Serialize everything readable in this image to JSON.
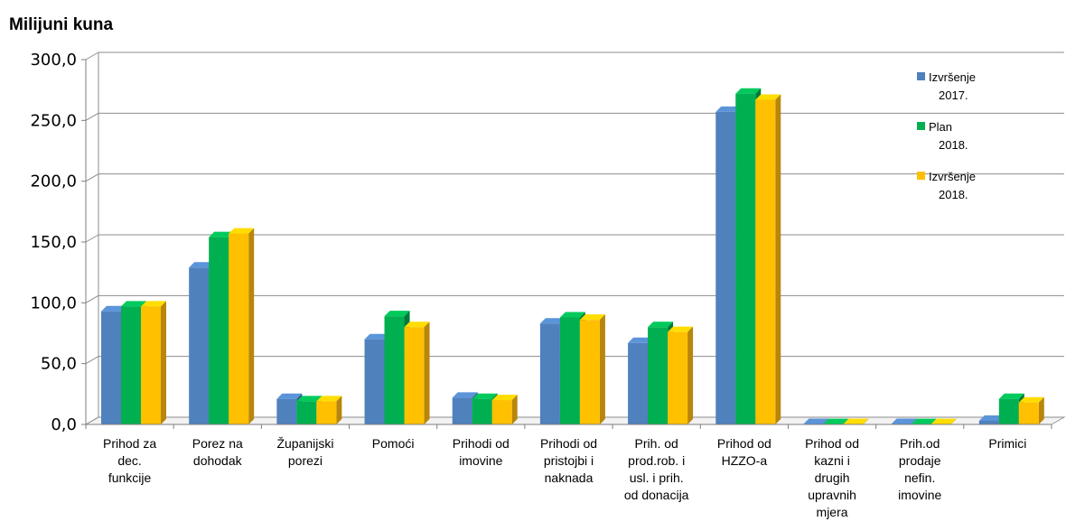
{
  "chart_data": {
    "type": "bar",
    "title": "Milijuni kuna",
    "ylim": [
      0,
      300
    ],
    "yticks": [
      "0,0",
      "50,0",
      "100,0",
      "150,0",
      "200,0",
      "250,0",
      "300,0"
    ],
    "ytick_values": [
      0,
      50,
      100,
      150,
      200,
      250,
      300
    ],
    "grid": true,
    "legend_position": "right",
    "categories": [
      [
        "Prihod za",
        "dec.",
        "funkcije"
      ],
      [
        "Porez na",
        "dohodak"
      ],
      [
        "Županijski",
        "porezi"
      ],
      [
        "Pomoći"
      ],
      [
        "Prihodi od",
        "imovine"
      ],
      [
        "Prihodi od",
        "pristojbi i",
        "naknada"
      ],
      [
        "Prih. od",
        "prod.rob. i",
        "usl. i prih.",
        "od donacija"
      ],
      [
        "Prihod od",
        "HZZO-a"
      ],
      [
        "Prihod od",
        "kazni i",
        "drugih",
        "upravnih",
        "mjera"
      ],
      [
        "Prih.od",
        "prodaje",
        "nefin.",
        "imovine"
      ],
      [
        "Primici"
      ]
    ],
    "series": [
      {
        "name": [
          "Izvršenje",
          "2017."
        ],
        "color": "#4F81BD",
        "dark": "#34578A",
        "values": [
          93,
          129,
          21,
          70,
          22,
          83,
          67,
          257,
          0.4,
          0.4,
          3
        ]
      },
      {
        "name": [
          "Plan",
          "2018."
        ],
        "color": "#00B050",
        "dark": "#00793A",
        "values": [
          97,
          154,
          19,
          89,
          21,
          88,
          80,
          272,
          0.3,
          0.3,
          21
        ]
      },
      {
        "name": [
          "Izvršenje",
          "2018."
        ],
        "color": "#FFC000",
        "dark": "#B8860B",
        "values": [
          97,
          157,
          19,
          80,
          20,
          86,
          76,
          267,
          0.3,
          0.3,
          18
        ]
      }
    ]
  }
}
